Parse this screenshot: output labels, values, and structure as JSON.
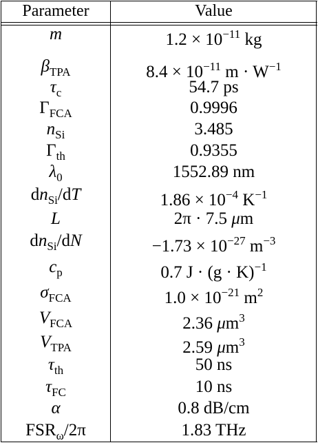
{
  "table": {
    "header": [
      "Parameter",
      "Value"
    ],
    "rows": [
      [
        [
          {
            "i": "m"
          }
        ],
        [
          {
            "r": "1.2 × 10"
          },
          {
            "sup": "−11"
          },
          {
            "r": " kg"
          }
        ]
      ],
      [
        [
          {
            "i": "β"
          },
          {
            "sub": "TPA"
          }
        ],
        [
          {
            "r": "8.4 × 10"
          },
          {
            "sup": "−11"
          },
          {
            "r": " m · W"
          },
          {
            "sup": "−1"
          }
        ]
      ],
      [
        [
          {
            "i": "τ"
          },
          {
            "sub": "c"
          }
        ],
        [
          {
            "r": "54.7 ps"
          }
        ]
      ],
      [
        [
          {
            "r": "Γ"
          },
          {
            "sub": "FCA"
          }
        ],
        [
          {
            "r": "0.9996"
          }
        ]
      ],
      [
        [
          {
            "i": "n"
          },
          {
            "sub": "Si"
          }
        ],
        [
          {
            "r": "3.485"
          }
        ]
      ],
      [
        [
          {
            "r": "Γ"
          },
          {
            "sub": "th"
          }
        ],
        [
          {
            "r": "0.9355"
          }
        ]
      ],
      [
        [
          {
            "i": "λ"
          },
          {
            "sub": "0"
          }
        ],
        [
          {
            "r": "1552.89 nm"
          }
        ]
      ],
      [
        [
          {
            "r": "d"
          },
          {
            "i": "n"
          },
          {
            "sub": "Si"
          },
          {
            "r": "/d"
          },
          {
            "i": "T"
          }
        ],
        [
          {
            "r": "1.86 × 10"
          },
          {
            "sup": "−4"
          },
          {
            "r": " K"
          },
          {
            "sup": "−1"
          }
        ]
      ],
      [
        [
          {
            "i": "L"
          }
        ],
        [
          {
            "r": "2π · 7.5 "
          },
          {
            "i": "μ"
          },
          {
            "r": "m"
          }
        ]
      ],
      [
        [
          {
            "r": "d"
          },
          {
            "i": "n"
          },
          {
            "sub": "Si"
          },
          {
            "r": "/d"
          },
          {
            "i": "N"
          }
        ],
        [
          {
            "r": "−1.73 × 10"
          },
          {
            "sup": "−27"
          },
          {
            "r": " m"
          },
          {
            "sup": "−3"
          }
        ]
      ],
      [
        [
          {
            "i": "c"
          },
          {
            "sub": "p"
          }
        ],
        [
          {
            "r": "0.7 J · (g · K)"
          },
          {
            "sup": "−1"
          }
        ]
      ],
      [
        [
          {
            "i": "σ"
          },
          {
            "sub": "FCA"
          }
        ],
        [
          {
            "r": "1.0 × 10"
          },
          {
            "sup": "−21"
          },
          {
            "r": " m"
          },
          {
            "sup": "2"
          }
        ]
      ],
      [
        [
          {
            "i": "V"
          },
          {
            "sub": "FCA"
          }
        ],
        [
          {
            "r": "2.36 "
          },
          {
            "i": "μ"
          },
          {
            "r": "m"
          },
          {
            "sup": "3"
          }
        ]
      ],
      [
        [
          {
            "i": "V"
          },
          {
            "sub": "TPA"
          }
        ],
        [
          {
            "r": "2.59 "
          },
          {
            "i": "μ"
          },
          {
            "r": "m"
          },
          {
            "sup": "3"
          }
        ]
      ],
      [
        [
          {
            "i": "τ"
          },
          {
            "sub": "th"
          }
        ],
        [
          {
            "r": "50 ns"
          }
        ]
      ],
      [
        [
          {
            "i": "τ"
          },
          {
            "sub": "FC"
          }
        ],
        [
          {
            "r": "10 ns"
          }
        ]
      ],
      [
        [
          {
            "i": "α"
          }
        ],
        [
          {
            "r": "0.8 dB/cm"
          }
        ]
      ],
      [
        [
          {
            "r": "FSR"
          },
          {
            "sub": "ω"
          },
          {
            "r": "/2π"
          }
        ],
        [
          {
            "r": "1.83 THz"
          }
        ]
      ]
    ]
  }
}
